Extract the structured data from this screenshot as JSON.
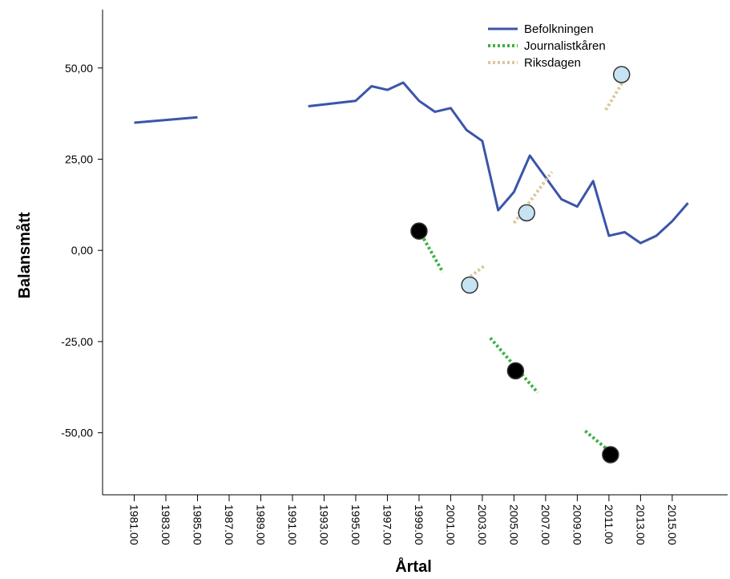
{
  "chart_data": {
    "type": "line",
    "xlabel": "Årtal",
    "ylabel": "Balansmått",
    "xlim": [
      1979.0,
      2018.5
    ],
    "ylim": [
      -67,
      66
    ],
    "x_ticks": [
      "1981.00",
      "1983.00",
      "1985.00",
      "1987.00",
      "1989.00",
      "1991.00",
      "1993.00",
      "1995.00",
      "1997.00",
      "1999.00",
      "2001.00",
      "2003.00",
      "2005.00",
      "2007.00",
      "2009.00",
      "2011.00",
      "2013.00",
      "2015.00"
    ],
    "x_tick_values": [
      1981,
      1983,
      1985,
      1987,
      1989,
      1991,
      1993,
      1995,
      1997,
      1999,
      2001,
      2003,
      2005,
      2007,
      2009,
      2011,
      2013,
      2015
    ],
    "y_ticks": [
      "50,00",
      "25,00",
      "0,00",
      "-25,00",
      "-50,00"
    ],
    "y_tick_values": [
      50,
      25,
      0,
      -25,
      -50
    ],
    "legend": {
      "position": "top-right",
      "entries": [
        "Befolkningen",
        "Journalistkåren",
        "Riksdagen"
      ]
    },
    "series": [
      {
        "name": "Befolkningen",
        "style": "solid",
        "color": "#3b55a8",
        "segments": [
          [
            [
              1981,
              35
            ],
            [
              1985,
              36.5
            ]
          ],
          [
            [
              1992,
              39.5
            ],
            [
              1995,
              41
            ],
            [
              1996,
              45
            ],
            [
              1997,
              44
            ],
            [
              1998,
              46
            ],
            [
              1999,
              41
            ],
            [
              2000,
              38
            ],
            [
              2001,
              39
            ],
            [
              2002,
              33
            ],
            [
              2003,
              30
            ],
            [
              2004,
              11
            ],
            [
              2005,
              16
            ],
            [
              2006,
              26
            ],
            [
              2007,
              20
            ],
            [
              2008,
              14
            ],
            [
              2009,
              12
            ],
            [
              2010,
              19
            ],
            [
              2011,
              4
            ],
            [
              2012,
              5
            ],
            [
              2013,
              2
            ],
            [
              2014,
              4
            ],
            [
              2015,
              8
            ],
            [
              2016,
              13
            ]
          ]
        ]
      },
      {
        "name": "Journalistkåren",
        "style": "dotted",
        "color": "#3cb043",
        "segments": [
          [
            [
              1999,
              5.5
            ],
            [
              2000.5,
              -6
            ]
          ],
          [
            [
              2003.5,
              -24
            ],
            [
              2006.5,
              -39
            ]
          ],
          [
            [
              2009.5,
              -49.5
            ],
            [
              2011.3,
              -56
            ]
          ]
        ],
        "points": [
          [
            1999,
            5.3
          ],
          [
            2005.1,
            -33
          ],
          [
            2011.1,
            -56
          ]
        ],
        "point_color": "#000000"
      },
      {
        "name": "Riksdagen",
        "style": "dotted",
        "color": "#d9c8a0",
        "segments": [
          [
            [
              2002,
              -8
            ],
            [
              2003.2,
              -4
            ]
          ],
          [
            [
              2005,
              7.5
            ],
            [
              2007.4,
              21.5
            ]
          ],
          [
            [
              2010.8,
              38.5
            ],
            [
              2012,
              47
            ]
          ]
        ],
        "points": [
          [
            2002.2,
            -9.5
          ],
          [
            2005.8,
            10.3
          ],
          [
            2011.8,
            48.2
          ]
        ],
        "point_color": "#c6e3f4"
      }
    ]
  }
}
